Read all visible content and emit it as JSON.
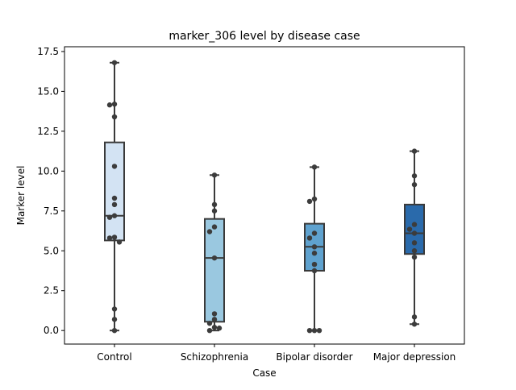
{
  "chart_data": {
    "type": "box",
    "title": "marker_306 level by disease case",
    "xlabel": "Case",
    "ylabel": "Marker level",
    "ylim": [
      -0.85,
      17.8
    ],
    "y_ticks": [
      0.0,
      2.5,
      5.0,
      7.5,
      10.0,
      12.5,
      15.0,
      17.5
    ],
    "y_tick_labels": [
      "0.0",
      "2.5",
      "5.0",
      "7.5",
      "10.0",
      "12.5",
      "15.0",
      "17.5"
    ],
    "grid": false,
    "categories": [
      "Control",
      "Schizophrenia",
      "Bipolar disorder",
      "Major depression"
    ],
    "box_colors": [
      "#d3e3f3",
      "#9ac8e0",
      "#5fa2cf",
      "#2a6aab"
    ],
    "boxes": [
      {
        "category": "Control",
        "whisker_low": 0.0,
        "q1": 5.65,
        "median": 7.2,
        "q3": 11.8,
        "whisker_high": 16.8
      },
      {
        "category": "Schizophrenia",
        "whisker_low": 0.0,
        "q1": 0.55,
        "median": 4.55,
        "q3": 7.0,
        "whisker_high": 9.75
      },
      {
        "category": "Bipolar disorder",
        "whisker_low": 0.0,
        "q1": 3.75,
        "median": 5.25,
        "q3": 6.7,
        "whisker_high": 10.25
      },
      {
        "category": "Major depression",
        "whisker_low": 0.4,
        "q1": 4.8,
        "median": 6.1,
        "q3": 7.9,
        "whisker_high": 11.25
      }
    ],
    "points": [
      {
        "category": "Control",
        "values": [
          16.8,
          14.2,
          14.15,
          13.4,
          10.3,
          8.3,
          7.9,
          7.2,
          7.1,
          5.85,
          5.8,
          5.55,
          1.35,
          0.7,
          0.0
        ]
      },
      {
        "category": "Schizophrenia",
        "values": [
          9.75,
          7.9,
          7.5,
          6.5,
          6.2,
          4.55,
          1.05,
          0.7,
          0.45,
          0.2,
          0.15,
          0.0
        ]
      },
      {
        "category": "Bipolar disorder",
        "values": [
          10.25,
          8.25,
          8.1,
          6.1,
          5.8,
          5.25,
          4.85,
          4.15,
          3.75,
          0.0,
          0.0,
          0.0
        ]
      },
      {
        "category": "Major depression",
        "values": [
          11.25,
          9.7,
          9.15,
          6.65,
          6.35,
          6.1,
          5.5,
          5.0,
          4.6,
          0.85,
          0.4
        ]
      }
    ]
  }
}
